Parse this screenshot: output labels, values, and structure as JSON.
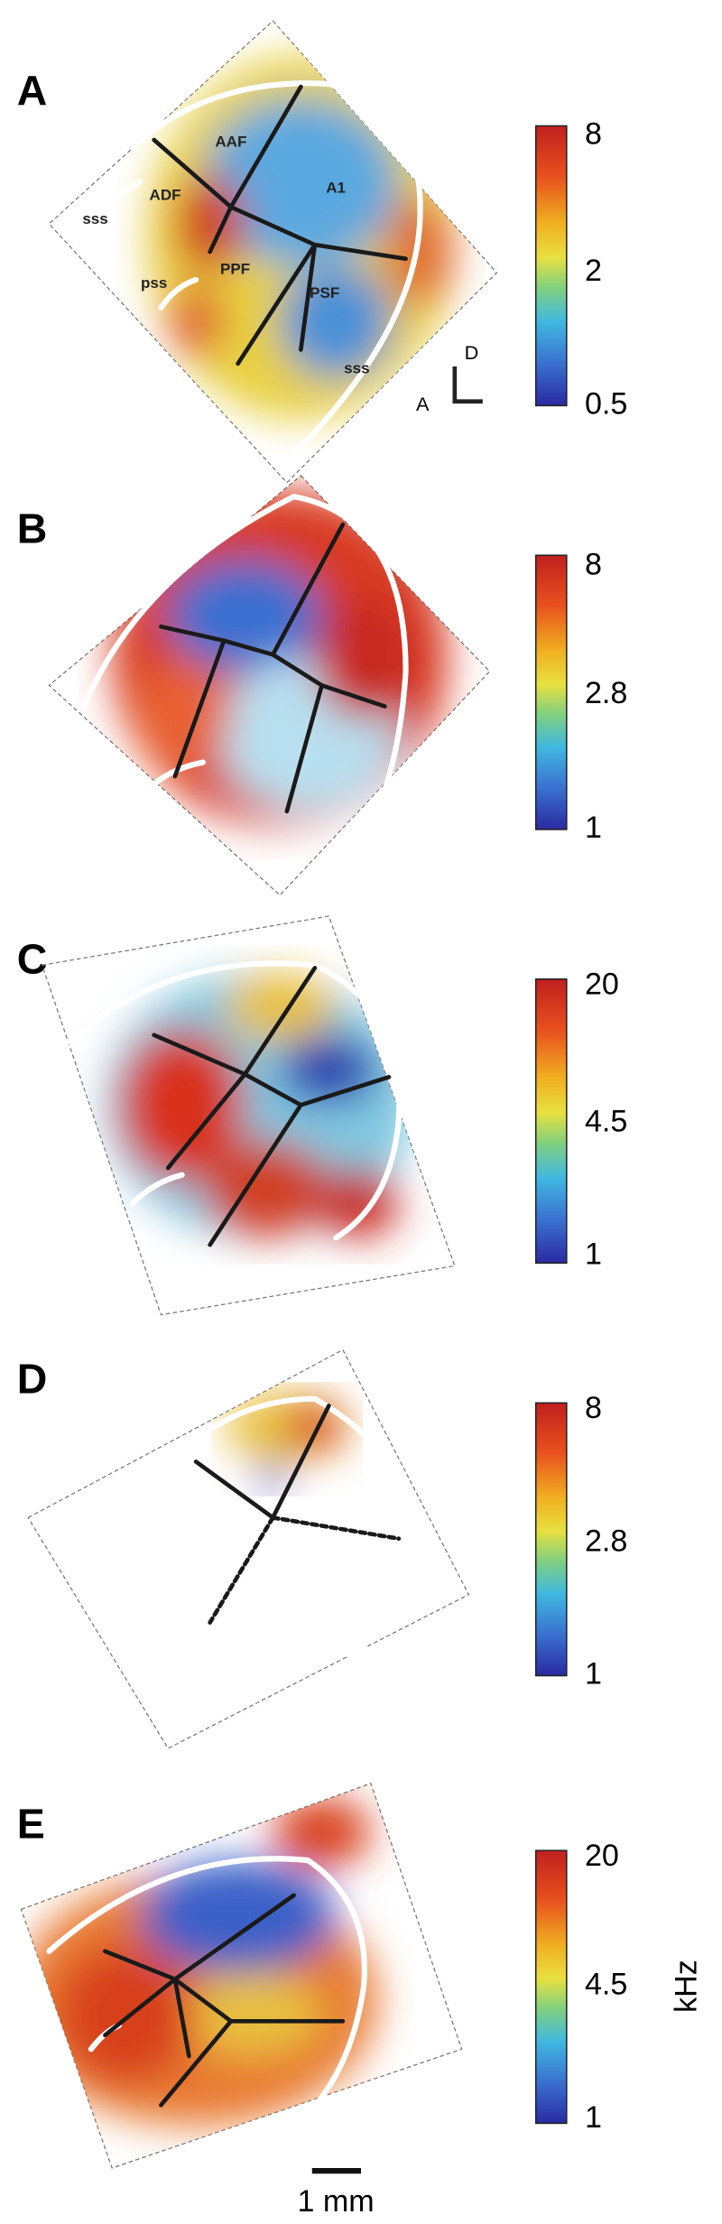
{
  "panels": [
    {
      "label": "A",
      "region_labels": [
        "AAF",
        "A1",
        "ADF",
        "sss",
        "pss",
        "PPF",
        "PSF",
        "sss"
      ],
      "colorbar_ticks": [
        "8",
        "2",
        "0.5"
      ]
    },
    {
      "label": "B",
      "colorbar_ticks": [
        "8",
        "2.8",
        "1"
      ]
    },
    {
      "label": "C",
      "colorbar_ticks": [
        "20",
        "4.5",
        "1"
      ]
    },
    {
      "label": "D",
      "colorbar_ticks": [
        "8",
        "2.8",
        "1"
      ]
    },
    {
      "label": "E",
      "colorbar_ticks": [
        "20",
        "4.5",
        "1"
      ]
    }
  ],
  "orientation": {
    "dorsal": "D",
    "anterior": "A"
  },
  "colorbar_unit": "kHz",
  "scale_bar": "1 mm"
}
